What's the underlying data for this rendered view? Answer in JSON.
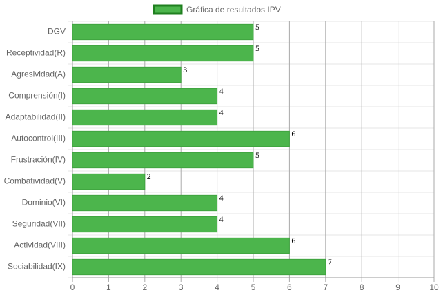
{
  "chart_data": {
    "type": "bar",
    "orientation": "horizontal",
    "categories": [
      "DGV",
      "Receptividad(R)",
      "Agresividad(A)",
      "Comprensión(I)",
      "Adaptabilidad(II)",
      "Autocontrol(III)",
      "Frustración(IV)",
      "Combatividad(V)",
      "Dominio(VI)",
      "Seguridad(VII)",
      "Actividad(VIII)",
      "Sociabilidad(IX)"
    ],
    "series": [
      {
        "name": "Gráfica de resultados IPV",
        "color": "#4cb54c",
        "values": [
          5,
          5,
          3,
          4,
          4,
          6,
          5,
          2,
          4,
          4,
          6,
          7
        ]
      }
    ],
    "xlim": [
      0,
      10
    ],
    "xticks": [
      0,
      1,
      2,
      3,
      4,
      5,
      6,
      7,
      8,
      9,
      10
    ],
    "grid": true,
    "legend": "top"
  }
}
